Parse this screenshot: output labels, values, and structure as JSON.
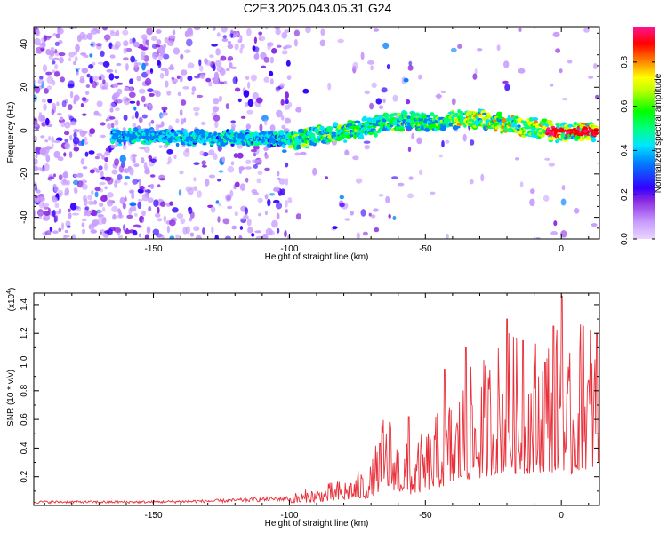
{
  "title": "C2E3.2025.043.05.31.G24",
  "chart_data": [
    {
      "type": "heatmap",
      "xlabel": "Height of straight line (km)",
      "ylabel": "Frequency (Hz)",
      "xlim": [
        -194,
        14
      ],
      "ylim": [
        -50,
        48
      ],
      "x_ticks": [
        -150,
        -100,
        -50,
        0
      ],
      "y_ticks": [
        -40,
        -20,
        0,
        20,
        40
      ],
      "colorbar": {
        "label": "Normalized spectral amplitude",
        "range": [
          0,
          0.96
        ],
        "ticks": [
          "0.0",
          "0.2",
          "0.4",
          "0.6",
          "0.8"
        ],
        "colors": [
          "#e6ccff",
          "#8a2be2",
          "#3300ff",
          "#00e5ff",
          "#00ff00",
          "#ffff00",
          "#ff8000",
          "#ff0000",
          "#ff1493"
        ]
      },
      "ridge_center_hz": [
        [
          -194,
          -3
        ],
        [
          -150,
          -3
        ],
        [
          -100,
          -4
        ],
        [
          -80,
          -1
        ],
        [
          -60,
          5
        ],
        [
          -45,
          3
        ],
        [
          -35,
          6
        ],
        [
          -20,
          3
        ],
        [
          -10,
          1
        ],
        [
          0,
          -1
        ],
        [
          14,
          0
        ]
      ],
      "colors": {
        "noise": "#a040f0",
        "ridge_high": "#ff0000"
      }
    },
    {
      "type": "line",
      "xlabel": "Height of straight line (km)",
      "ylabel": "SNR (10 * v/v)",
      "y_multiplier": "(x10",
      "y_multiplier_exp": "4",
      "y_multiplier_close": ")",
      "xlim": [
        -194,
        14
      ],
      "ylim": [
        0,
        1.48
      ],
      "x_ticks": [
        -150,
        -100,
        -50,
        0
      ],
      "y_ticks": [
        "0.2",
        "0.4",
        "0.6",
        "0.8",
        "1.0",
        "1.2",
        "1.4"
      ],
      "series": [
        {
          "color": "#e8303a",
          "envelope": [
            [
              -194,
              0.03
            ],
            [
              -150,
              0.03
            ],
            [
              -125,
              0.04
            ],
            [
              -100,
              0.06
            ],
            [
              -90,
              0.1
            ],
            [
              -80,
              0.14
            ],
            [
              -70,
              0.22
            ],
            [
              -65,
              0.5
            ],
            [
              -60,
              0.38
            ],
            [
              -55,
              0.3
            ],
            [
              -45,
              0.5
            ],
            [
              -40,
              0.6
            ],
            [
              -35,
              0.7
            ],
            [
              -30,
              0.75
            ],
            [
              -25,
              0.85
            ],
            [
              -20,
              0.95
            ],
            [
              -15,
              0.85
            ],
            [
              -10,
              0.9
            ],
            [
              -5,
              0.95
            ],
            [
              -2,
              0.9
            ],
            [
              0,
              1.2
            ],
            [
              2,
              0.7
            ],
            [
              5,
              0.95
            ],
            [
              10,
              1.0
            ],
            [
              14,
              1.05
            ]
          ],
          "peaks": [
            [
              -63,
              0.58
            ],
            [
              -56,
              0.62
            ],
            [
              -43,
              0.95
            ],
            [
              -35,
              1.1
            ],
            [
              -20,
              1.3
            ],
            [
              -14,
              1.15
            ],
            [
              -6,
              1.0
            ],
            [
              -3,
              1.25
            ],
            [
              0.3,
              1.46
            ],
            [
              8,
              1.25
            ],
            [
              13,
              1.2
            ]
          ]
        }
      ]
    }
  ]
}
